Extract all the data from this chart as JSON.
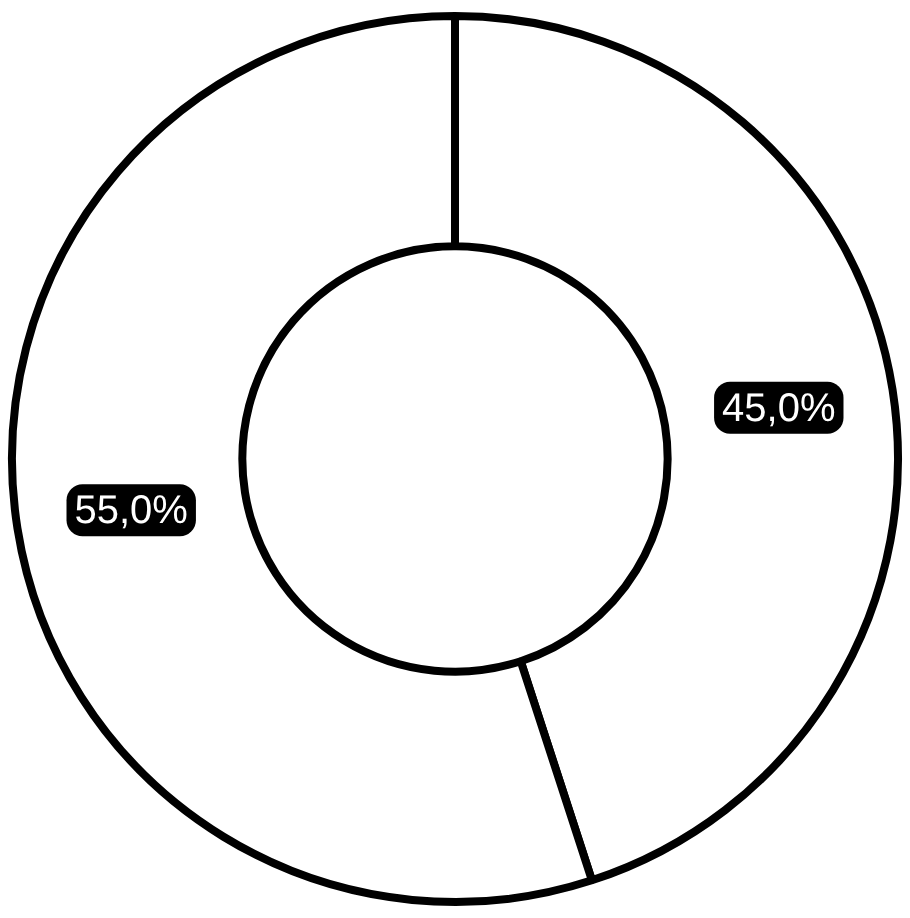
{
  "chart_data": {
    "type": "donut",
    "categories": [
      null,
      null
    ],
    "values": [
      45,
      55
    ],
    "colors": [
      "#ffffff",
      "#ffffff"
    ],
    "value_labels": [
      "45,0%",
      "55,0%"
    ],
    "legend": false
  }
}
